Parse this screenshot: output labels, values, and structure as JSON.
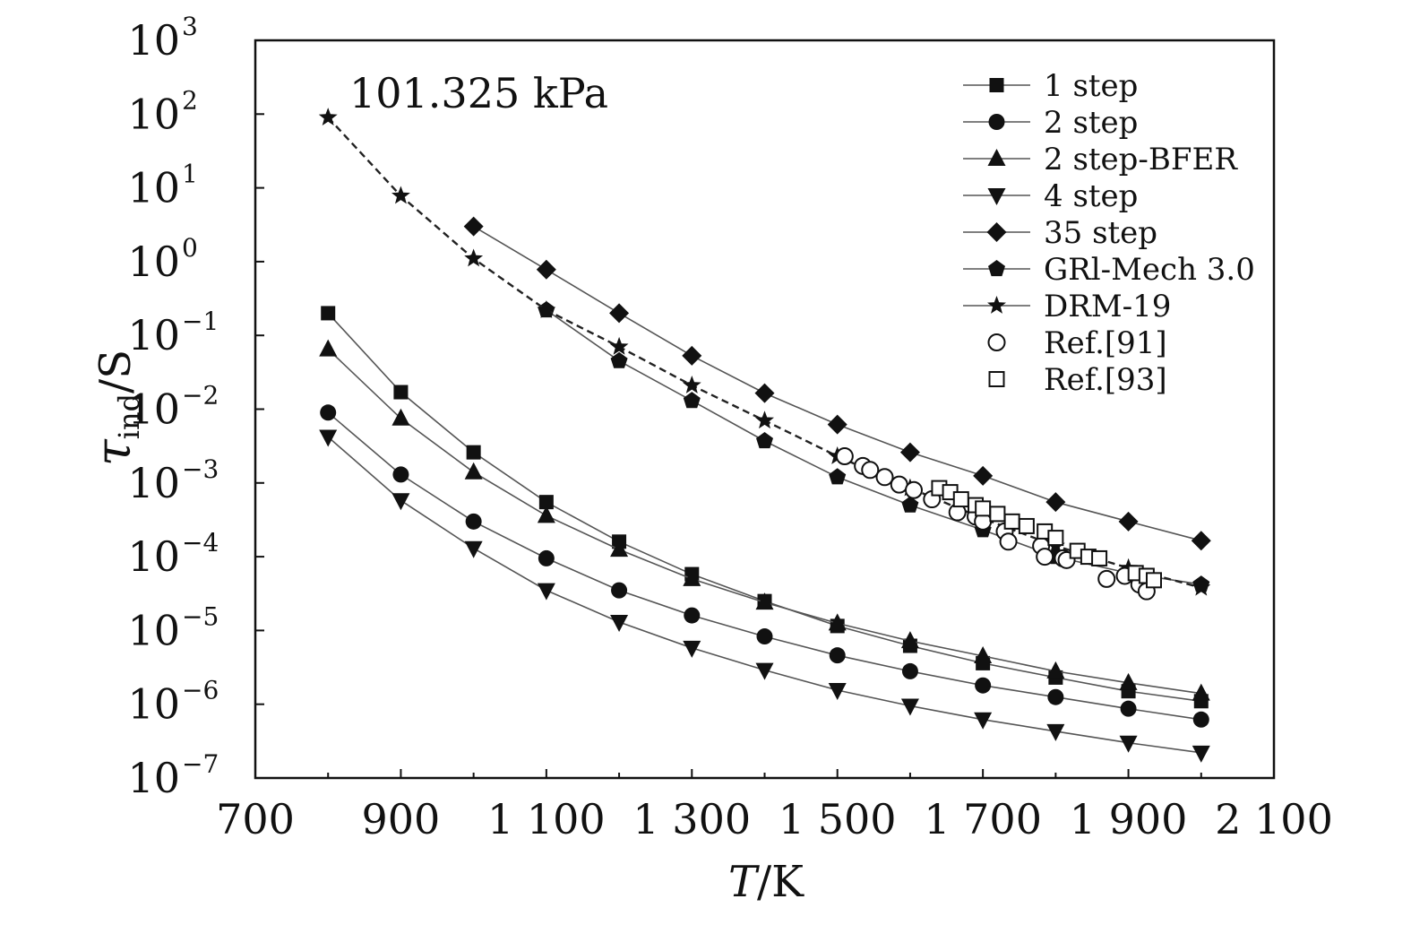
{
  "chart_data": {
    "type": "line",
    "annotation": "101.325 kPa",
    "xlabel_italic": "T",
    "xlabel_rest": "/K",
    "ylabel_symbol": "τ",
    "ylabel_sub": "ind",
    "ylabel_rest": "/S",
    "xlim": [
      700,
      2100
    ],
    "ylim_log10": [
      -7,
      3
    ],
    "y_scale": "log",
    "grid": false,
    "legend_placement": "top-right",
    "x_ticks": [
      {
        "v": 700,
        "label": "700"
      },
      {
        "v": 900,
        "label": "900"
      },
      {
        "v": 1100,
        "label": "1 100"
      },
      {
        "v": 1300,
        "label": "1 300"
      },
      {
        "v": 1500,
        "label": "1 500"
      },
      {
        "v": 1700,
        "label": "1 700"
      },
      {
        "v": 1900,
        "label": "1 900"
      },
      {
        "v": 2100,
        "label": "2 100"
      }
    ],
    "y_ticks": [
      {
        "v": 3,
        "base": "10",
        "exp": "3"
      },
      {
        "v": 2,
        "base": "10",
        "exp": "2"
      },
      {
        "v": 1,
        "base": "10",
        "exp": "1"
      },
      {
        "v": 0,
        "base": "10",
        "exp": "0"
      },
      {
        "v": -1,
        "base": "10",
        "exp": "−1"
      },
      {
        "v": -2,
        "base": "10",
        "exp": "−2"
      },
      {
        "v": -3,
        "base": "10",
        "exp": "−3"
      },
      {
        "v": -4,
        "base": "10",
        "exp": "−4"
      },
      {
        "v": -5,
        "base": "10",
        "exp": "−5"
      },
      {
        "v": -6,
        "base": "10",
        "exp": "−6"
      },
      {
        "v": -7,
        "base": "10",
        "exp": "−7"
      }
    ],
    "series": [
      {
        "name": "1 step",
        "marker": "square",
        "line": "solid",
        "color": "#111111",
        "x": [
          800,
          900,
          1000,
          1100,
          1200,
          1300,
          1400,
          1500,
          1600,
          1700,
          1800,
          1900,
          2000
        ],
        "y": [
          0.2,
          0.017,
          0.0026,
          0.00055,
          0.00016,
          5.8e-05,
          2.5e-05,
          1.15e-05,
          6.2e-06,
          3.6e-06,
          2.3e-06,
          1.5e-06,
          1.1e-06
        ]
      },
      {
        "name": "2 step",
        "marker": "circle",
        "line": "solid",
        "color": "#111111",
        "x": [
          800,
          900,
          1000,
          1100,
          1200,
          1300,
          1400,
          1500,
          1600,
          1700,
          1800,
          1900,
          2000
        ],
        "y": [
          0.009,
          0.0013,
          0.0003,
          9.5e-05,
          3.5e-05,
          1.6e-05,
          8.3e-06,
          4.6e-06,
          2.8e-06,
          1.8e-06,
          1.25e-06,
          8.7e-07,
          6.2e-07
        ]
      },
      {
        "name": "2 step-BFER",
        "marker": "triangle-up",
        "line": "solid",
        "color": "#111111",
        "x": [
          800,
          900,
          1000,
          1100,
          1200,
          1300,
          1400,
          1500,
          1600,
          1700,
          1800,
          1900,
          2000
        ],
        "y": [
          0.065,
          0.0075,
          0.0014,
          0.00036,
          0.000125,
          5e-05,
          2.4e-05,
          1.25e-05,
          7.2e-06,
          4.5e-06,
          2.8e-06,
          1.95e-06,
          1.4e-06
        ]
      },
      {
        "name": "4 step",
        "marker": "triangle-down",
        "line": "solid",
        "color": "#111111",
        "x": [
          800,
          900,
          1000,
          1100,
          1200,
          1300,
          1400,
          1500,
          1600,
          1700,
          1800,
          1900,
          2000
        ],
        "y": [
          0.0042,
          0.00058,
          0.00013,
          3.5e-05,
          1.3e-05,
          5.8e-06,
          2.9e-06,
          1.55e-06,
          9.5e-07,
          6.2e-07,
          4.3e-07,
          3e-07,
          2.2e-07
        ]
      },
      {
        "name": "35 step",
        "marker": "diamond",
        "line": "solid",
        "color": "#111111",
        "x": [
          1000,
          1100,
          1200,
          1300,
          1400,
          1500,
          1600,
          1700,
          1800,
          1900,
          2000
        ],
        "y": [
          3.0,
          0.78,
          0.2,
          0.053,
          0.0165,
          0.0062,
          0.0026,
          0.00125,
          0.00055,
          0.0003,
          0.000165
        ]
      },
      {
        "name": "GRl-Mech 3.0",
        "marker": "pentagon",
        "line": "solid",
        "color": "#111111",
        "x": [
          1100,
          1200,
          1300,
          1400,
          1500,
          1600,
          1700,
          1800,
          1900,
          2000
        ],
        "y": [
          0.22,
          0.045,
          0.013,
          0.0037,
          0.0012,
          0.0005,
          0.00023,
          0.0001,
          6e-05,
          4.2e-05
        ]
      },
      {
        "name": "DRM-19",
        "marker": "star",
        "line": "dashed",
        "color": "#111111",
        "x": [
          800,
          900,
          1000,
          1100,
          1200,
          1300,
          1400,
          1500,
          1600,
          1700,
          1800,
          1900,
          2000
        ],
        "y": [
          90,
          7.8,
          1.1,
          0.22,
          0.07,
          0.021,
          0.007,
          0.0023,
          0.00085,
          0.00033,
          0.00014,
          7e-05,
          3.8e-05
        ]
      },
      {
        "name": "Ref.[91]",
        "marker": "open-circle",
        "line": "none",
        "color": "#111111",
        "x": [
          1510,
          1535,
          1545,
          1565,
          1585,
          1605,
          1630,
          1665,
          1690,
          1700,
          1730,
          1735,
          1780,
          1785,
          1810,
          1815,
          1870,
          1895,
          1915,
          1925
        ],
        "y": [
          0.0023,
          0.0017,
          0.0015,
          0.0012,
          0.00095,
          0.0008,
          0.0006,
          0.0004,
          0.00035,
          0.0003,
          0.00022,
          0.00016,
          0.00014,
          0.0001,
          9.5e-05,
          9e-05,
          5e-05,
          5.5e-05,
          4.2e-05,
          3.4e-05
        ]
      },
      {
        "name": "Ref.[93]",
        "marker": "open-square",
        "line": "none",
        "color": "#111111",
        "x": [
          1640,
          1655,
          1670,
          1690,
          1700,
          1720,
          1740,
          1760,
          1785,
          1800,
          1830,
          1845,
          1860,
          1910,
          1925,
          1935
        ],
        "y": [
          0.00085,
          0.00075,
          0.0006,
          0.0005,
          0.00045,
          0.00038,
          0.0003,
          0.00026,
          0.00022,
          0.00018,
          0.00012,
          0.0001,
          9.5e-05,
          6e-05,
          5.5e-05,
          4.8e-05
        ]
      }
    ]
  }
}
